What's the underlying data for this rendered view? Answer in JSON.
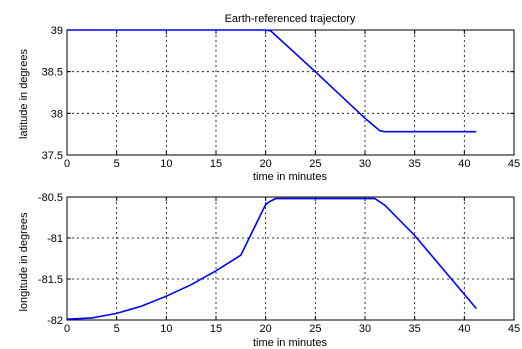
{
  "chart_data": [
    {
      "type": "line",
      "title": "Earth-referenced trajectory",
      "xlabel": "time in minutes",
      "ylabel": "latitude in degrees",
      "xlim": [
        0,
        45
      ],
      "ylim": [
        37.5,
        39
      ],
      "xticks": [
        "0",
        "5",
        "10",
        "15",
        "20",
        "25",
        "30",
        "35",
        "40",
        "45"
      ],
      "yticks": [
        "37.5",
        "38",
        "38.5",
        "39"
      ],
      "grid": true,
      "line_color": "#0000ff",
      "x": [
        0,
        5,
        10,
        15,
        20,
        20.5,
        25,
        30,
        31.5,
        32,
        35,
        41.2
      ],
      "y": [
        39,
        39,
        39,
        39,
        39,
        38.99,
        38.5,
        37.94,
        37.79,
        37.78,
        37.78,
        37.78
      ]
    },
    {
      "type": "line",
      "title": "",
      "xlabel": "time in minutes",
      "ylabel": "longitude in degrees",
      "xlim": [
        0,
        45
      ],
      "ylim": [
        -82,
        -80.5
      ],
      "xticks": [
        "0",
        "5",
        "10",
        "15",
        "20",
        "25",
        "30",
        "35",
        "40",
        "45"
      ],
      "yticks": [
        "-82",
        "-81.5",
        "-81",
        "-80.5"
      ],
      "grid": true,
      "line_color": "#0000ff",
      "x": [
        0,
        2.5,
        5,
        7.5,
        10,
        12.5,
        15,
        17.5,
        20,
        20.5,
        21,
        25,
        30,
        31,
        32,
        35,
        41.2
      ],
      "y": [
        -81.99,
        -81.975,
        -81.92,
        -81.83,
        -81.71,
        -81.57,
        -81.4,
        -81.21,
        -80.59,
        -80.55,
        -80.52,
        -80.52,
        -80.52,
        -80.52,
        -80.6,
        -80.97,
        -81.86
      ]
    }
  ]
}
